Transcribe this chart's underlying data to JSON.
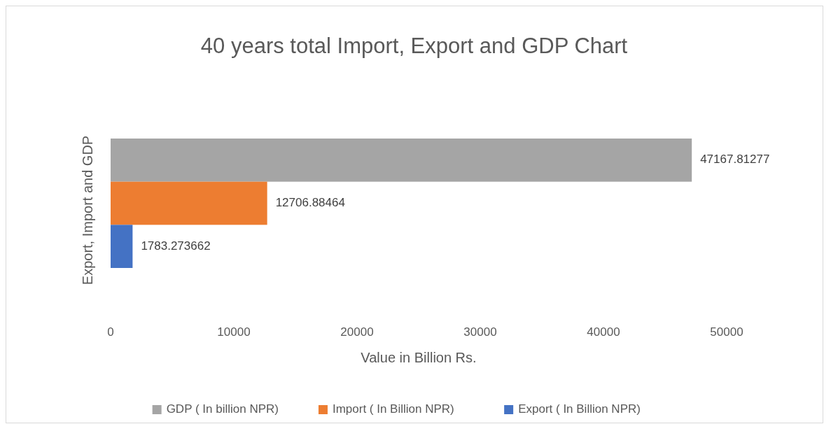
{
  "chart_data": {
    "type": "bar",
    "orientation": "horizontal",
    "title": "40 years total Import, Export and GDP Chart",
    "xlabel": "Value in Billion Rs.",
    "ylabel": "Export, Import and GDP",
    "categories": [
      null
    ],
    "series": [
      {
        "name": "GDP ( In billion NPR)",
        "color": "#a5a5a5",
        "values": [
          47167.81277
        ]
      },
      {
        "name": "Import ( In Billion NPR)",
        "color": "#ed7d31",
        "values": [
          12706.88464
        ]
      },
      {
        "name": "Export ( In Billion NPR)",
        "color": "#4472c4",
        "values": [
          1783.273662
        ]
      }
    ],
    "xlim": [
      0,
      50000
    ],
    "xticks": [
      0,
      10000,
      20000,
      30000,
      40000,
      50000
    ],
    "data_labels": true,
    "grid": false,
    "legend": "bottom"
  }
}
